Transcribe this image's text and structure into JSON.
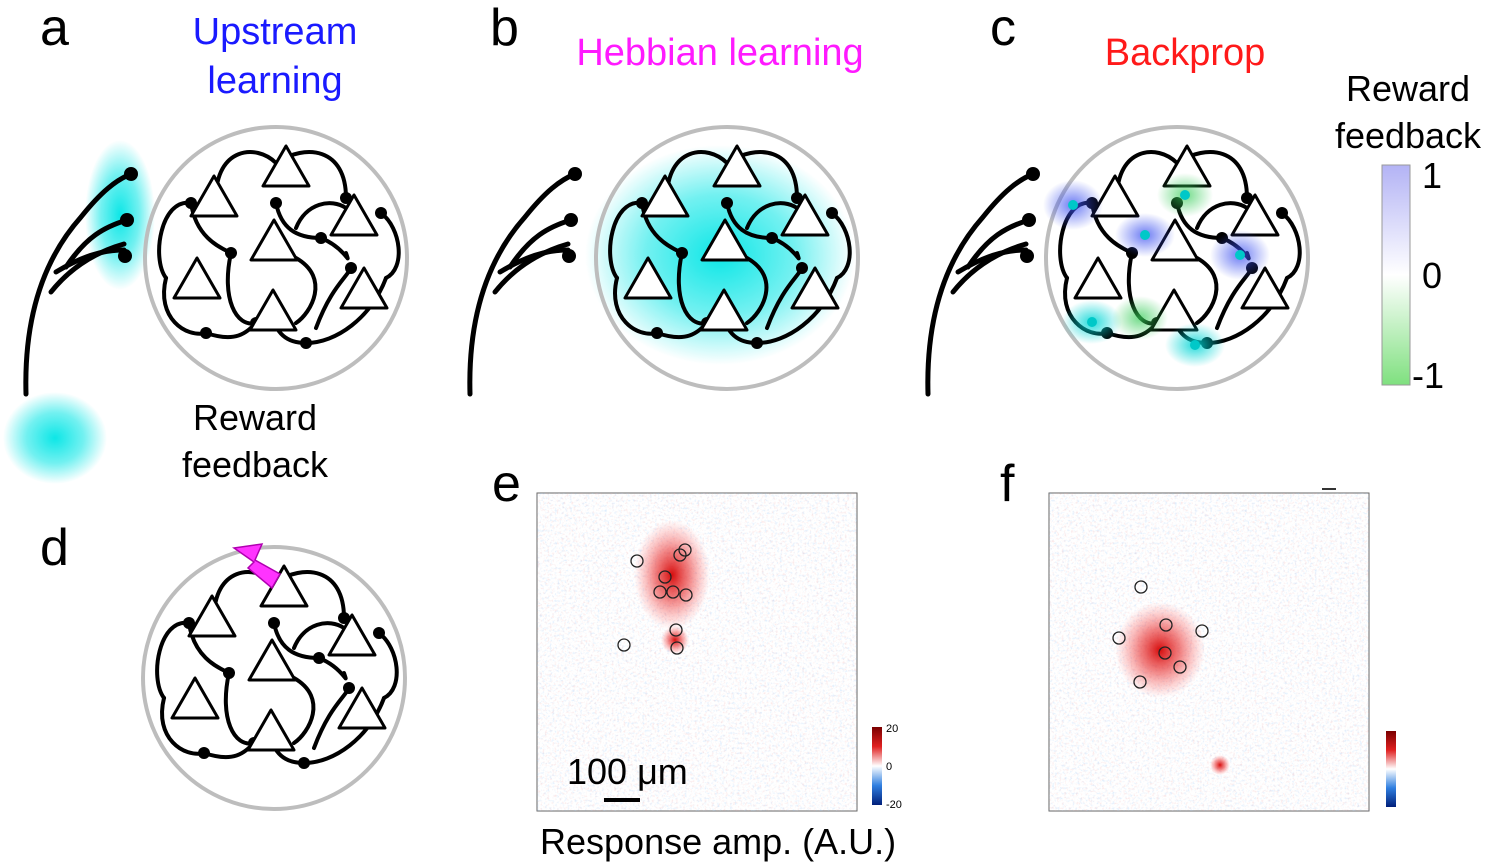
{
  "panels": {
    "a": {
      "letter": "a",
      "title_line1": "Upstream",
      "title_line2": "learning",
      "title_color": "#1a1aff"
    },
    "b": {
      "letter": "b",
      "title": "Hebbian learning",
      "title_color": "#ff1aff"
    },
    "c": {
      "letter": "c",
      "title": "Backprop",
      "title_color": "#ff1a1a"
    },
    "d": {
      "letter": "d"
    },
    "e": {
      "letter": "e",
      "scalebar_label": "100 μm",
      "colorbar_max": "20",
      "colorbar_mid": "0",
      "colorbar_min": "-20"
    },
    "f": {
      "letter": "f"
    }
  },
  "reward_feedback": {
    "line1": "Reward",
    "line2": "feedback"
  },
  "legend": {
    "title_line1": "Reward",
    "title_line2": "feedback",
    "max": "1",
    "mid": "0",
    "min": "-1",
    "color_pos": "#b3b3f5",
    "color_neg": "#7fe07f"
  },
  "caption": {
    "text": "Response amp.  (A.U.)"
  },
  "colors": {
    "glow": "#00e5e5",
    "stim": "#ff33ff",
    "ring": "#bdbdbd",
    "map_pos": "#e02020",
    "map_neg": "#2f7fe0"
  }
}
